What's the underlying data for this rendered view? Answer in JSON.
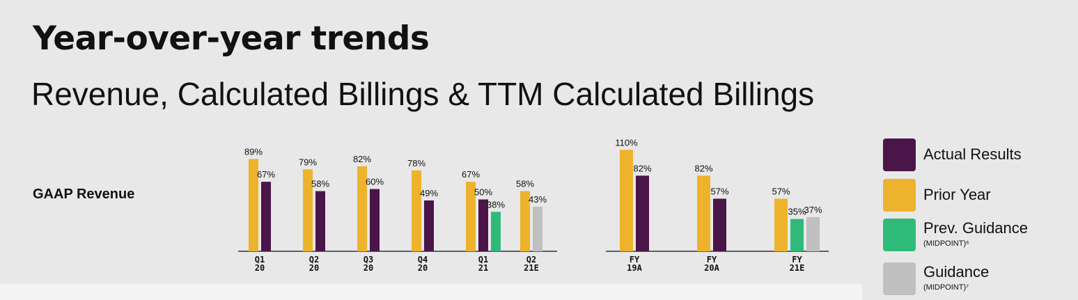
{
  "header": {
    "title": "Year-over-year trends",
    "subtitle": "Revenue, Calculated Billings & TTM Calculated Billings"
  },
  "row_label": "GAAP Revenue",
  "legend": {
    "items": [
      {
        "label": "Actual Results",
        "note": "",
        "color": "#4a1548"
      },
      {
        "label": "Prior Year",
        "note": "",
        "color": "#edb32c"
      },
      {
        "label": "Prev. Guidance",
        "note": "(MIDPOINT)⁶",
        "color": "#2fba7a"
      },
      {
        "label": "Guidance",
        "note": "(MIDPOINT)⁷",
        "color": "#c0c0c0"
      }
    ]
  },
  "colors": {
    "prior": "#edb32c",
    "actual": "#4a1548",
    "prev_guidance": "#2fba7a",
    "guidance": "#c0c0c0"
  },
  "chart_data": [
    {
      "type": "bar",
      "categories": [
        "Q1\n20",
        "Q2\n20",
        "Q3\n20",
        "Q4\n20",
        "Q1\n21",
        "Q2\n21E"
      ],
      "series": [
        {
          "name": "Prior Year",
          "values": [
            89,
            79,
            82,
            78,
            67,
            58
          ]
        },
        {
          "name": "Actual Results",
          "values": [
            67,
            58,
            60,
            49,
            50,
            null
          ]
        },
        {
          "name": "Prev. Guidance",
          "values": [
            null,
            null,
            null,
            null,
            38,
            null
          ]
        },
        {
          "name": "Guidance",
          "values": [
            null,
            null,
            null,
            null,
            null,
            43
          ]
        }
      ],
      "value_suffix": "%",
      "ylim": [
        0,
        100
      ]
    },
    {
      "type": "bar",
      "categories": [
        "FY\n19A",
        "FY\n20A",
        "FY\n21E"
      ],
      "series": [
        {
          "name": "Prior Year",
          "values": [
            110,
            82,
            57
          ]
        },
        {
          "name": "Actual Results",
          "values": [
            82,
            57,
            null
          ]
        },
        {
          "name": "Prev. Guidance",
          "values": [
            null,
            null,
            35
          ]
        },
        {
          "name": "Guidance",
          "values": [
            null,
            null,
            37
          ]
        }
      ],
      "value_suffix": "%",
      "ylim": [
        0,
        125
      ]
    }
  ]
}
